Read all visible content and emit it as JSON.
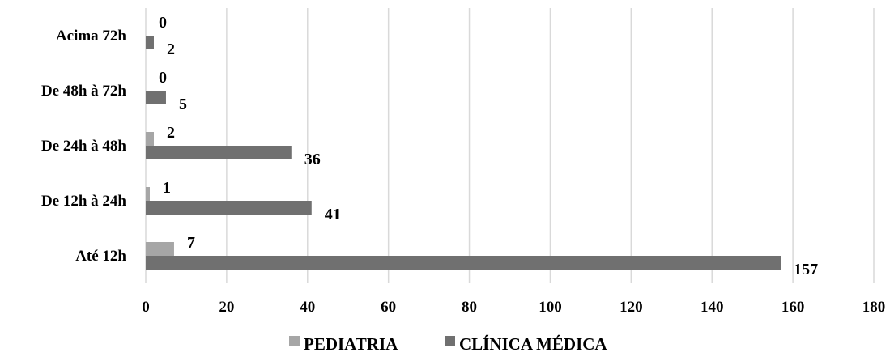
{
  "chart_data": {
    "type": "bar",
    "orientation": "horizontal",
    "categories": [
      "Acima 72h",
      "De 48h à 72h",
      "De 24h à 48h",
      "De 12h à 24h",
      "Até 12h"
    ],
    "series": [
      {
        "name": "PEDIATRIA",
        "values": [
          0,
          0,
          2,
          1,
          7
        ],
        "color": "#a6a6a6"
      },
      {
        "name": "CLÍNICA MÉDICA",
        "values": [
          2,
          5,
          36,
          41,
          157
        ],
        "color": "#707070"
      }
    ],
    "xlim": [
      0,
      180
    ],
    "xticks": [
      "0",
      "20",
      "40",
      "60",
      "80",
      "100",
      "120",
      "140",
      "160",
      "180"
    ],
    "title": "",
    "xlabel": "",
    "ylabel": "",
    "grid": "vertical",
    "legend": "bottom-center"
  }
}
